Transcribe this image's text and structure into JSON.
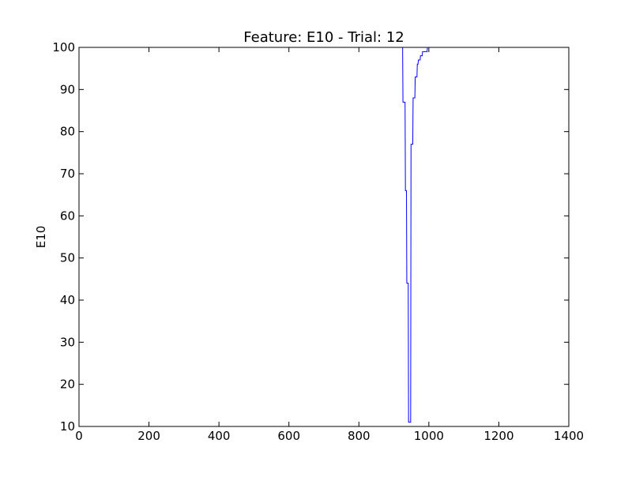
{
  "chart_data": {
    "type": "line",
    "title": "Feature: E10 - Trial: 12",
    "xlabel": "",
    "ylabel": "E10",
    "xlim": [
      0,
      1400
    ],
    "ylim": [
      10,
      100
    ],
    "x_ticks": [
      0,
      200,
      400,
      600,
      800,
      1000,
      1200,
      1400
    ],
    "y_ticks": [
      10,
      20,
      30,
      40,
      50,
      60,
      70,
      80,
      90,
      100
    ],
    "grid": false,
    "legend": "none",
    "line_color": "#0000ff",
    "drawstyle": "steps",
    "series": [
      {
        "x": [
          925,
          926,
          929,
          930,
          932,
          933,
          936,
          937,
          941,
          942,
          944,
          945,
          948,
          949,
          951,
          952,
          954,
          955,
          957,
          958,
          960,
          961,
          963,
          964,
          966,
          967,
          969,
          970,
          975,
          976,
          981,
          982,
          995,
          996,
          1000
        ],
        "y": [
          100,
          87,
          87,
          87,
          87,
          66,
          66,
          44,
          44,
          11,
          11,
          11,
          11,
          77,
          77,
          77,
          77,
          88,
          88,
          88,
          88,
          93,
          93,
          93,
          93,
          96,
          96,
          97,
          97,
          98,
          98,
          99,
          99,
          100,
          100
        ]
      }
    ]
  }
}
